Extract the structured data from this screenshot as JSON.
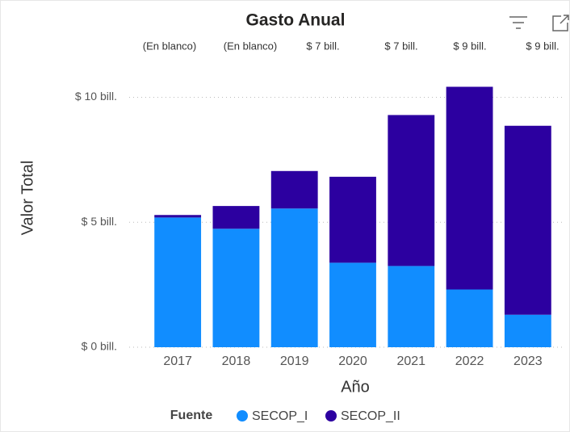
{
  "chart_data": {
    "type": "stacked_bar",
    "title": "Gasto Anual",
    "annotations": [
      "(En blanco)",
      "(En blanco)",
      "$ 7 bill.",
      "$ 7 bill.",
      "$ 9 bill.",
      "$ 9 bill."
    ],
    "categories": [
      "2017",
      "2018",
      "2019",
      "2020",
      "2021",
      "2022",
      "2023"
    ],
    "series": [
      {
        "name": "SECOP_I",
        "color": "#118dff",
        "values": [
          5.19,
          4.74,
          5.55,
          3.38,
          3.25,
          2.31,
          1.3
        ]
      },
      {
        "name": "SECOP_II",
        "color": "#2c00a0",
        "values": [
          0.1,
          0.91,
          1.5,
          3.44,
          6.04,
          8.11,
          7.56
        ]
      }
    ],
    "ylim": [
      0,
      10.5
    ],
    "yticks": [
      {
        "value": 0,
        "label": "$ 0 bill."
      },
      {
        "value": 5,
        "label": "$ 5 bill."
      },
      {
        "value": 10,
        "label": "$ 10 bill."
      }
    ],
    "grid": true,
    "xlabel": "Año",
    "ylabel": "Valor Total",
    "legend_title": "Fuente"
  }
}
